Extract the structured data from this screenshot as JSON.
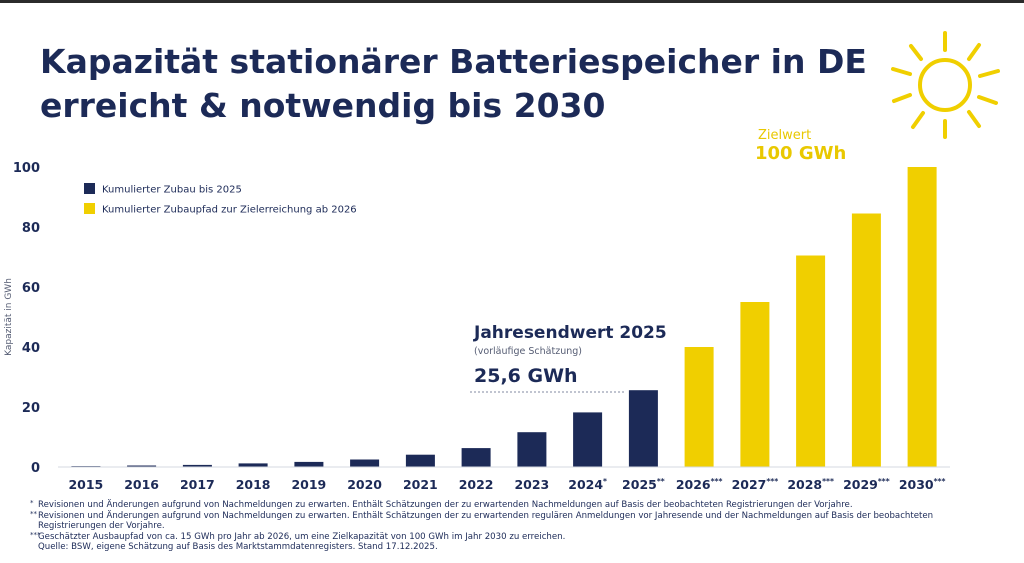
{
  "title_line1": "Kapazität stationärer Batteriespeicher in DE",
  "title_line2": "erreicht & notwendig bis 2030",
  "colors": {
    "navy": "#1c2a57",
    "yellow": "#f0cf00",
    "text": "#1c2a57"
  },
  "icons": {
    "sun": "sun-icon"
  },
  "annotations": {
    "jahresendwert_title": "Jahresendwert 2025",
    "jahresendwert_sub": "(vorläufige Schätzung)",
    "jahresendwert_value": "25,6 GWh",
    "zielwert_title": "Zielwert",
    "zielwert_value": "100 GWh"
  },
  "chart_data": {
    "type": "bar",
    "ylabel": "Kapazität in GWh",
    "ylim": [
      0,
      100
    ],
    "yticks": [
      0,
      20,
      40,
      60,
      80,
      100
    ],
    "grid": false,
    "legend_position": "top-left",
    "categories": [
      "2015",
      "2016",
      "2017",
      "2018",
      "2019",
      "2020",
      "2021",
      "2022",
      "2023",
      "2024",
      "2025",
      "2026",
      "2027",
      "2028",
      "2029",
      "2030"
    ],
    "category_marks": [
      "",
      "",
      "",
      "",
      "",
      "",
      "",
      "",
      "",
      "*",
      "**",
      "***",
      "***",
      "***",
      "***",
      "***"
    ],
    "series": [
      {
        "name": "Kumulierter Zubau bis 2025",
        "color": "#1c2a57",
        "values": [
          0.3,
          0.5,
          0.7,
          1.2,
          1.7,
          2.5,
          4.1,
          6.3,
          11.6,
          18.2,
          25.6,
          null,
          null,
          null,
          null,
          null
        ]
      },
      {
        "name": "Kumulierter Zubaupfad zur Zielerreichung ab 2026",
        "color": "#f0cf00",
        "values": [
          null,
          null,
          null,
          null,
          null,
          null,
          null,
          null,
          null,
          null,
          null,
          40,
          55,
          70.5,
          84.5,
          100
        ]
      }
    ]
  },
  "footnotes": [
    {
      "mark": "*",
      "text": "Revisionen und Änderungen aufgrund von Nachmeldungen zu erwarten. Enthält Schätzungen der zu erwartenden Nachmeldungen auf Basis der beobachteten Registrierungen der Vorjahre."
    },
    {
      "mark": "**",
      "text": "Revisionen und Änderungen aufgrund von Nachmeldungen zu erwarten. Enthält Schätzungen der zu erwartenden regulären Anmeldungen vor Jahresende und der Nachmeldungen auf Basis der beobachteten Registrierungen der Vorjahre."
    },
    {
      "mark": "***",
      "text": "Geschätzter Ausbaupfad von ca. 15 GWh pro Jahr ab 2026, um eine Zielkapazität von 100 GWh im Jahr 2030 zu erreichen."
    },
    {
      "mark": "",
      "text": "Quelle: BSW, eigene Schätzung auf Basis des Marktstammdatenregisters. Stand 17.12.2025."
    }
  ]
}
